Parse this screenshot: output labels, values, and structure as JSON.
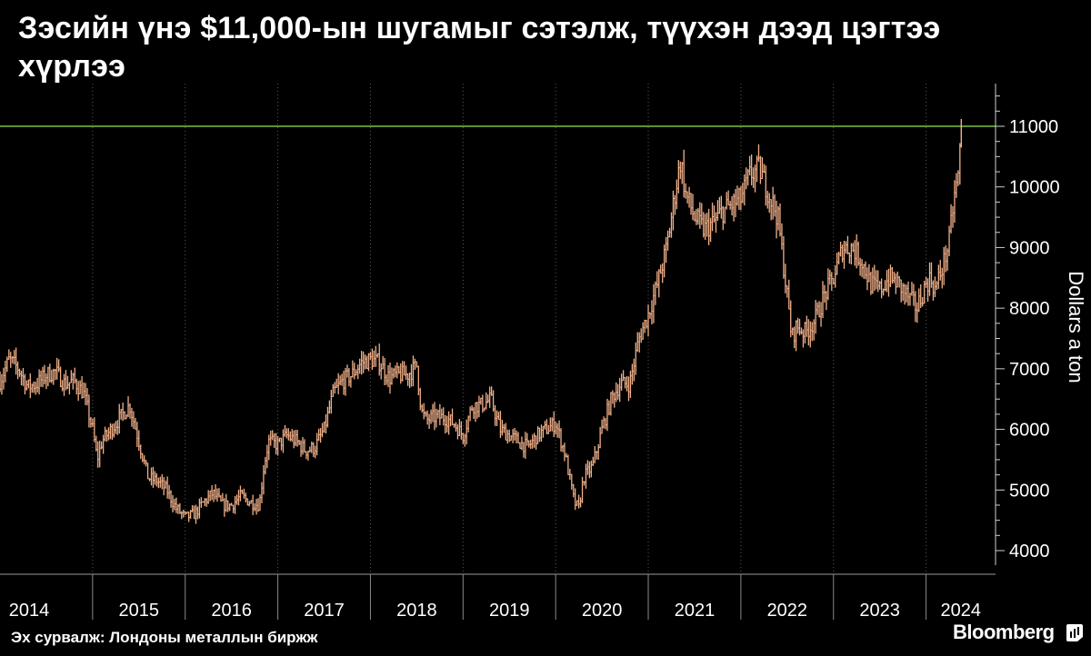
{
  "title": "Зэсийн үнэ $11,000-ын шугамыг сэтэлж, түүхэн дээд цэгтээ хүрлээ",
  "source": "Эх сурвалж: Лондоны металлын биржж",
  "brand": "Bloomberg",
  "colors": {
    "background": "#000000",
    "price": "#f0b089",
    "reference_line": "#7cc242",
    "grid": "#5a5a5a",
    "text": "#ffffff"
  },
  "chart_data": {
    "type": "line",
    "title": "Зэсийн үнэ $11,000-ын шугамыг сэтэлж, түүхэн дээд цэгтээ хүрлээ",
    "xlabel": "",
    "ylabel": "Dollars a ton",
    "xlim": [
      2014.0,
      2024.75
    ],
    "ylim": [
      3600,
      11750
    ],
    "x_ticks": [
      "2014",
      "2015",
      "2016",
      "2017",
      "2018",
      "2019",
      "2020",
      "2021",
      "2022",
      "2023",
      "2024"
    ],
    "y_ticks": [
      4000,
      5000,
      6000,
      7000,
      8000,
      9000,
      10000,
      11000
    ],
    "reference_line": {
      "y": 11000
    },
    "grid": "vertical, dotted at year boundaries",
    "series": [
      {
        "x": [
          2014.0,
          2014.1,
          2014.2,
          2014.3,
          2014.4,
          2014.5,
          2014.6,
          2014.7,
          2014.8,
          2014.9,
          2015.0,
          2015.05,
          2015.1,
          2015.2,
          2015.3,
          2015.4,
          2015.5,
          2015.6,
          2015.7,
          2015.8,
          2015.9,
          2016.0,
          2016.1,
          2016.2,
          2016.3,
          2016.4,
          2016.5,
          2016.6,
          2016.7,
          2016.8,
          2016.85,
          2016.9,
          2017.0,
          2017.1,
          2017.2,
          2017.3,
          2017.4,
          2017.5,
          2017.6,
          2017.7,
          2017.8,
          2017.9,
          2018.0,
          2018.1,
          2018.2,
          2018.3,
          2018.4,
          2018.5,
          2018.55,
          2018.6,
          2018.7,
          2018.8,
          2018.9,
          2019.0,
          2019.1,
          2019.2,
          2019.3,
          2019.4,
          2019.5,
          2019.6,
          2019.7,
          2019.8,
          2019.9,
          2020.0,
          2020.1,
          2020.2,
          2020.25,
          2020.3,
          2020.4,
          2020.5,
          2020.6,
          2020.7,
          2020.8,
          2020.9,
          2021.0,
          2021.1,
          2021.2,
          2021.3,
          2021.35,
          2021.4,
          2021.5,
          2021.6,
          2021.7,
          2021.8,
          2021.9,
          2022.0,
          2022.1,
          2022.2,
          2022.3,
          2022.4,
          2022.5,
          2022.55,
          2022.6,
          2022.7,
          2022.8,
          2022.9,
          2023.0,
          2023.1,
          2023.2,
          2023.3,
          2023.4,
          2023.5,
          2023.6,
          2023.7,
          2023.8,
          2023.9,
          2024.0,
          2024.05,
          2024.1,
          2024.2,
          2024.25,
          2024.3,
          2024.35,
          2024.38
        ],
        "values": [
          6800,
          7150,
          7000,
          6700,
          6750,
          6900,
          6950,
          6750,
          6800,
          6600,
          6000,
          5500,
          5800,
          6000,
          6200,
          6400,
          5800,
          5200,
          5150,
          5000,
          4700,
          4550,
          4600,
          4800,
          4950,
          4750,
          4750,
          4900,
          4800,
          4750,
          5400,
          5800,
          5750,
          5900,
          5800,
          5650,
          5700,
          6000,
          6600,
          6800,
          6900,
          7100,
          7150,
          7100,
          6850,
          6900,
          6900,
          7050,
          6300,
          6150,
          6200,
          6200,
          6100,
          5900,
          6400,
          6400,
          6500,
          6000,
          5900,
          5800,
          5700,
          5900,
          6000,
          6100,
          5600,
          4800,
          4700,
          5200,
          5400,
          6000,
          6500,
          6750,
          6750,
          7500,
          7900,
          8400,
          9000,
          10000,
          10450,
          9900,
          9500,
          9300,
          9400,
          9600,
          9700,
          9800,
          10200,
          10300,
          9900,
          9500,
          8200,
          7500,
          7700,
          7600,
          7800,
          8200,
          8500,
          9000,
          9000,
          8800,
          8400,
          8300,
          8500,
          8400,
          8200,
          8000,
          8400,
          8500,
          8300,
          8800,
          9100,
          9800,
          10200,
          11000
        ]
      }
    ]
  }
}
